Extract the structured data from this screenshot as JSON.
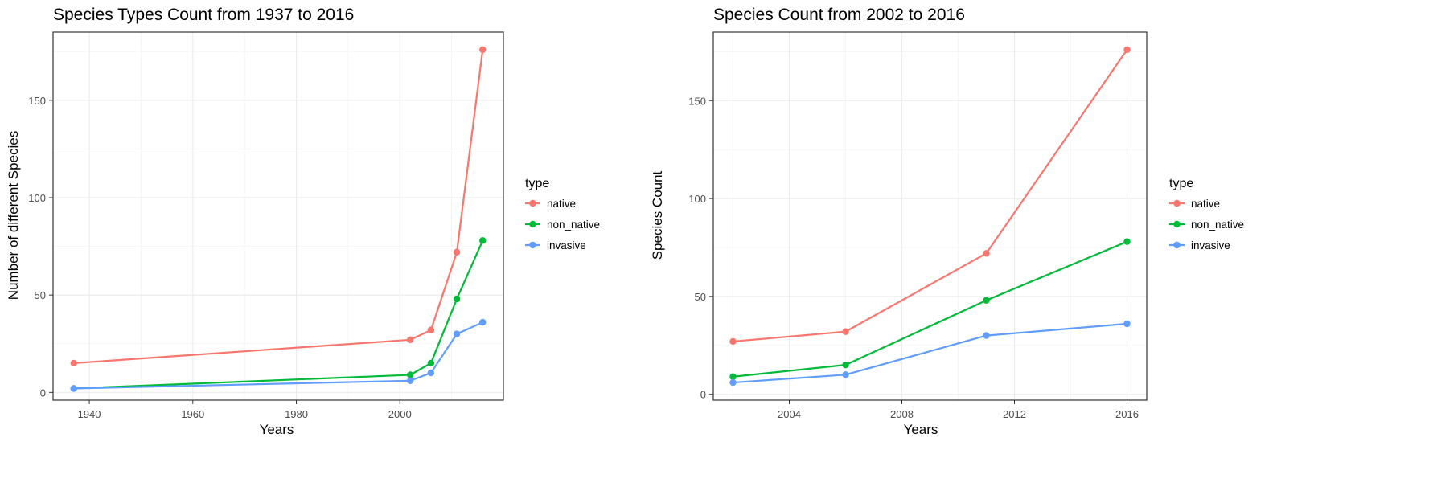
{
  "colors": {
    "native": "#F8766D",
    "non_native": "#00BA38",
    "invasive": "#619CFF"
  },
  "chart_data": [
    {
      "type": "line",
      "title": "Species Types Count from 1937 to 2016",
      "xlabel": "Years",
      "ylabel": "Number of different Species",
      "xlim": [
        1933,
        2020
      ],
      "ylim": [
        -4,
        185
      ],
      "xticks": [
        1940,
        1960,
        1980,
        2000
      ],
      "yticks": [
        0,
        50,
        100,
        150
      ],
      "grid": true,
      "legend": {
        "title": "type",
        "placement": "right"
      },
      "x": [
        1937,
        2002,
        2006,
        2011,
        2016
      ],
      "series": [
        {
          "name": "native",
          "values": [
            15,
            27,
            32,
            72,
            176
          ]
        },
        {
          "name": "non_native",
          "values": [
            2,
            9,
            15,
            48,
            78
          ]
        },
        {
          "name": "invasive",
          "values": [
            2,
            6,
            10,
            30,
            36
          ]
        }
      ]
    },
    {
      "type": "line",
      "title": "Species Count from 2002 to 2016",
      "xlabel": "Years",
      "ylabel": "Species Count",
      "xlim": [
        2001.3,
        2016.7
      ],
      "ylim": [
        -3,
        185
      ],
      "xticks": [
        2004,
        2008,
        2012,
        2016
      ],
      "yticks": [
        0,
        50,
        100,
        150
      ],
      "grid": true,
      "legend": {
        "title": "type",
        "placement": "right"
      },
      "x": [
        2002,
        2006,
        2011,
        2016
      ],
      "series": [
        {
          "name": "native",
          "values": [
            27,
            32,
            72,
            176
          ]
        },
        {
          "name": "non_native",
          "values": [
            9,
            15,
            48,
            78
          ]
        },
        {
          "name": "invasive",
          "values": [
            6,
            10,
            30,
            36
          ]
        }
      ]
    }
  ]
}
